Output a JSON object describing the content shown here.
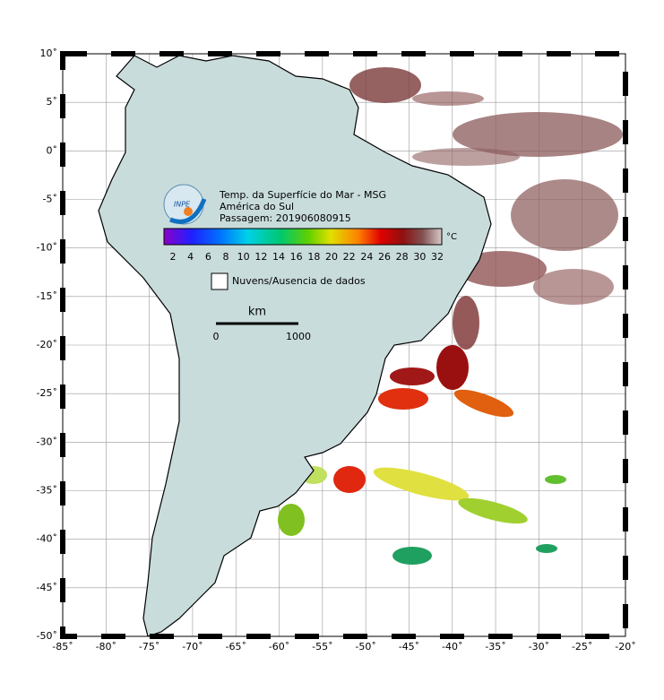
{
  "map": {
    "title": "Temp. da Superfície do Mar - MSG",
    "subtitle": "América do Sul",
    "pass": "Passagem: 201906080915",
    "logo": "INPE",
    "colorbar": {
      "ticks": [
        2,
        4,
        6,
        8,
        10,
        12,
        14,
        16,
        18,
        20,
        22,
        24,
        26,
        28,
        30,
        32
      ],
      "unit": "°C"
    },
    "legend": "Nuvens/Ausencia de dados",
    "scale": {
      "unit": "km",
      "labels": [
        0,
        1000
      ]
    },
    "lat_labels": [
      "10˚",
      "5˚",
      "0˚",
      "-5˚",
      "-10˚",
      "-15˚",
      "-20˚",
      "-25˚",
      "-30˚",
      "-35˚",
      "-40˚",
      "-45˚",
      "-50˚"
    ],
    "lon_labels": [
      "-85˚",
      "-80˚",
      "-75˚",
      "-70˚",
      "-65˚",
      "-60˚",
      "-55˚",
      "-50˚",
      "-45˚",
      "-40˚",
      "-35˚",
      "-30˚",
      "-25˚",
      "-20˚"
    ]
  }
}
